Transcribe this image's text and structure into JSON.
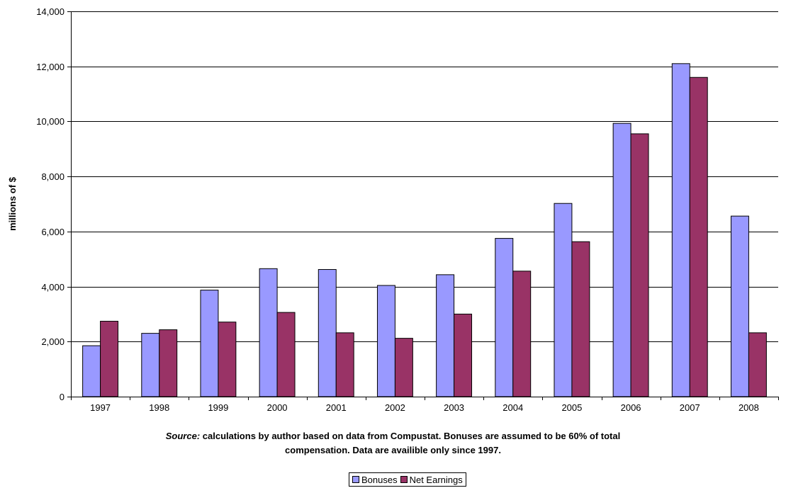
{
  "chart_data": {
    "type": "bar",
    "categories": [
      "1997",
      "1998",
      "1999",
      "2000",
      "2001",
      "2002",
      "2003",
      "2004",
      "2005",
      "2006",
      "2007",
      "2008"
    ],
    "series": [
      {
        "name": "Bonuses",
        "color": "#9999FF",
        "values": [
          1850,
          2300,
          3870,
          4650,
          4620,
          4040,
          4430,
          5750,
          7020,
          9930,
          12100,
          6560
        ]
      },
      {
        "name": "Net Earnings",
        "color": "#993366",
        "values": [
          2740,
          2430,
          2710,
          3060,
          2320,
          2120,
          3000,
          4560,
          5630,
          9550,
          11600,
          2320
        ]
      }
    ],
    "ylabel": "millions of $",
    "ylim": [
      0,
      14000
    ],
    "yticks": [
      "0",
      "2,000",
      "4,000",
      "6,000",
      "8,000",
      "10,000",
      "12,000",
      "14,000"
    ],
    "grid": true,
    "legend": "bottom-center"
  },
  "source_note": {
    "label": "Source:",
    "line1": "calculations by author based on data from Compustat. Bonuses are assumed to be 60% of total",
    "line2": "compensation. Data are availible only since 1997."
  }
}
